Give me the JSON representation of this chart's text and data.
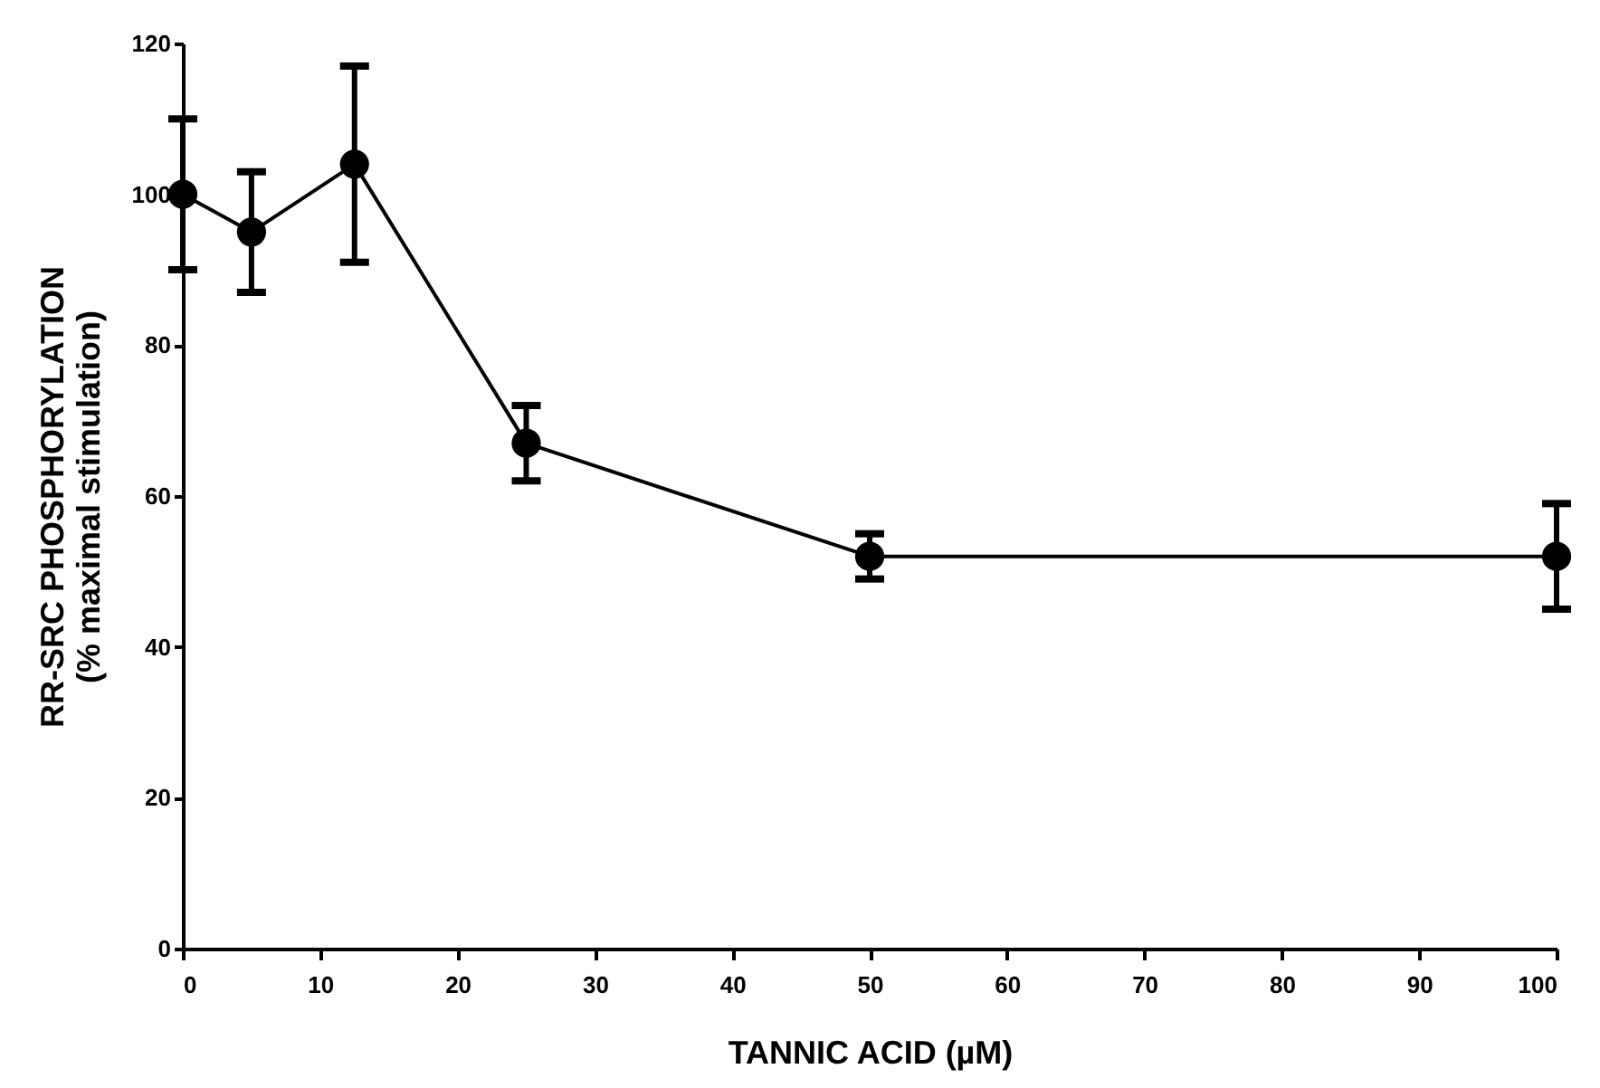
{
  "chart_data": {
    "type": "line",
    "xlabel": "TANNIC ACID (µM)",
    "ylabel": "RR-SRC PHOSPHORYLATION\n(% maximal stimulation)",
    "x": [
      0,
      5,
      12.5,
      25,
      50,
      100
    ],
    "series": [
      {
        "color": "#000000",
        "values": [
          100,
          95,
          104,
          67,
          52,
          52
        ],
        "errors": [
          10,
          8,
          13,
          5,
          3,
          7
        ]
      }
    ],
    "xlim": [
      0,
      100
    ],
    "xticks": [
      0,
      10,
      20,
      30,
      40,
      50,
      60,
      70,
      80,
      90,
      100
    ],
    "ylim": [
      0,
      120
    ],
    "yticks": [
      0,
      20,
      40,
      60,
      80,
      100,
      120
    ],
    "grid": false,
    "marker": "circle",
    "line_style": "solid"
  }
}
